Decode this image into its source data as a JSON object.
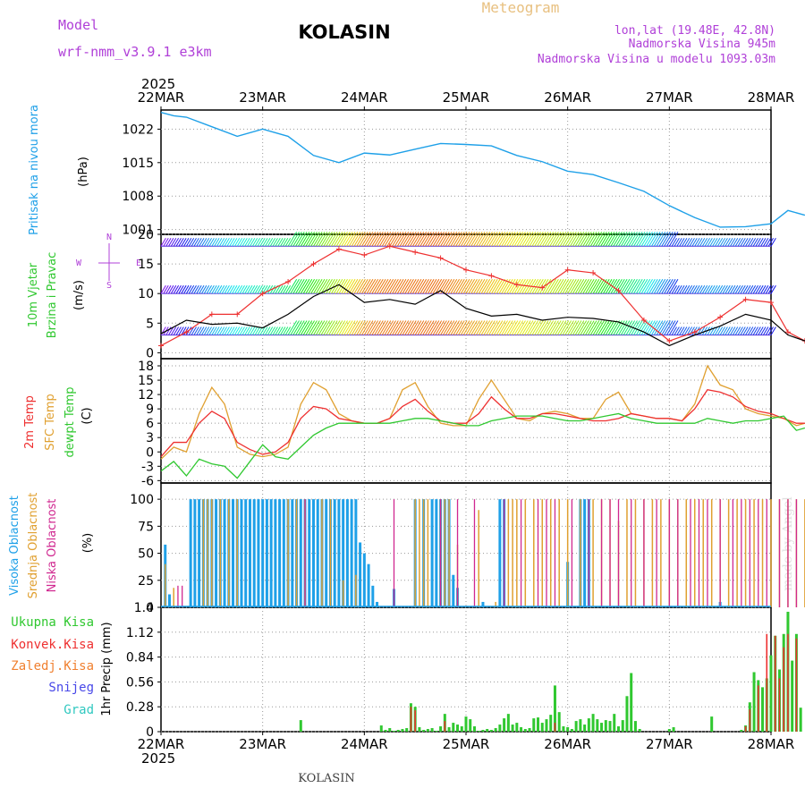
{
  "header": {
    "model_label": "Model",
    "model_name": "wrf-nmm_v3.9.1 e3km",
    "station": "KOLASIN",
    "meteogram": "Meteogram",
    "lonlat": "lon,lat (19.48E, 42.8N)",
    "elevation": "Nadmorska Visina 945m",
    "model_elevation": "Nadmorska Visina u modelu 1093.03m",
    "year_top": "2025",
    "year_bottom": "2025",
    "footer_station": "KOLASIN",
    "credit": "made by Angel"
  },
  "colors": {
    "purple": "#b040d8",
    "pressure": "#1ea0e8",
    "temp2m": "#ee3030",
    "sfc": "#e0a030",
    "dewpt": "#30c830",
    "high_cloud": "#1ea0e8",
    "mid_cloud": "#e0a030",
    "low_cloud": "#d02890",
    "total_precip": "#30c830",
    "conv_precip": "#ee3030"
  },
  "chart_data": [
    {
      "type": "line",
      "panel": "pressure",
      "ylabel": "Pritisak na nivou mora",
      "unit": "(hPa)",
      "x_ticks": [
        "22MAR",
        "23MAR",
        "24MAR",
        "25MAR",
        "26MAR",
        "27MAR",
        "28MAR"
      ],
      "y_ticks": [
        "1022",
        "1015",
        "1008",
        "1001"
      ],
      "ylim": [
        1000,
        1026
      ],
      "x_hours": [
        0,
        3,
        6,
        12,
        18,
        24,
        30,
        36,
        42,
        48,
        54,
        60,
        66,
        72,
        78,
        84,
        90,
        96,
        102,
        108,
        114,
        120,
        126,
        132,
        138,
        144,
        148,
        150,
        152
      ],
      "values": [
        1025.5,
        1024.8,
        1024.5,
        1022.5,
        1020.5,
        1022.0,
        1020.5,
        1016.5,
        1015.0,
        1017.0,
        1016.6,
        1017.8,
        1019.0,
        1018.8,
        1018.5,
        1016.5,
        1015.2,
        1013.2,
        1012.5,
        1010.8,
        1009.0,
        1006.0,
        1003.5,
        1001.5,
        1001.6,
        1002.2,
        1005.0,
        1004.5,
        1004.0
      ]
    },
    {
      "type": "line",
      "panel": "wind",
      "ylabel_1": "10m Vjetar",
      "ylabel_2": "Brzina i Pravac",
      "unit": "(m/s)",
      "compass": [
        "N",
        "W",
        "E",
        "S"
      ],
      "y_ticks": [
        "20",
        "15",
        "10",
        "5",
        "0"
      ],
      "ylim": [
        -1,
        20
      ],
      "x_hours": [
        0,
        6,
        12,
        18,
        24,
        30,
        36,
        42,
        48,
        54,
        60,
        66,
        72,
        78,
        84,
        90,
        96,
        102,
        108,
        114,
        120,
        126,
        132,
        138,
        144,
        148,
        152
      ],
      "speed": [
        3.2,
        5.5,
        4.8,
        5.0,
        4.2,
        6.5,
        9.5,
        11.5,
        8.5,
        9.0,
        8.2,
        10.5,
        7.5,
        6.2,
        6.5,
        5.5,
        6.0,
        5.8,
        5.2,
        3.5,
        1.2,
        3.0,
        4.5,
        6.5,
        5.5,
        3.0,
        2.0
      ],
      "gust": [
        1.2,
        3.5,
        6.5,
        6.5,
        10.0,
        12.0,
        15.0,
        17.5,
        16.5,
        18.0,
        17.0,
        16.0,
        14.0,
        13.0,
        11.5,
        11.0,
        14.0,
        13.5,
        10.5,
        5.5,
        2.0,
        3.5,
        6.0,
        9.0,
        8.5,
        3.5,
        2.0
      ],
      "barb_levels": [
        18,
        10,
        3
      ]
    },
    {
      "type": "line",
      "panel": "temperature",
      "ylabel_1": "2m Temp",
      "ylabel_2": "SFC Temp",
      "ylabel_3": "dewpt Temp",
      "unit": "(C)",
      "y_ticks": [
        "18",
        "15",
        "12",
        "9",
        "6",
        "3",
        "0",
        "-3",
        "-6"
      ],
      "ylim": [
        -6.5,
        19.5
      ],
      "x_hours": [
        0,
        3,
        6,
        9,
        12,
        15,
        18,
        21,
        24,
        27,
        30,
        33,
        36,
        39,
        42,
        45,
        48,
        51,
        54,
        57,
        60,
        63,
        66,
        69,
        72,
        75,
        78,
        81,
        84,
        87,
        90,
        93,
        96,
        99,
        102,
        105,
        108,
        111,
        114,
        117,
        120,
        123,
        126,
        129,
        132,
        135,
        138,
        141,
        144,
        147,
        150,
        152
      ],
      "temp_2m": [
        -1,
        2,
        2,
        6,
        8.5,
        7,
        2,
        0.5,
        -0.5,
        0,
        2,
        7,
        9.5,
        9,
        7,
        6.5,
        6,
        6,
        7,
        9.5,
        11,
        8.5,
        6.5,
        6,
        6,
        8,
        11.5,
        9,
        7,
        7,
        8,
        8,
        7.5,
        7,
        6.5,
        6.5,
        7,
        8,
        7.5,
        7,
        7,
        6.5,
        9,
        13,
        12.5,
        11.5,
        9.5,
        8.5,
        8,
        7,
        6,
        6
      ],
      "sfc_temp": [
        -1.5,
        1,
        0,
        8,
        13.5,
        10,
        1,
        -0.5,
        -1,
        -0.5,
        1,
        10,
        14.5,
        13,
        8,
        6.5,
        6,
        6,
        7,
        13,
        14.5,
        9.5,
        6,
        5.5,
        5.5,
        11,
        15,
        11,
        7,
        6.5,
        8,
        8.5,
        8,
        7,
        7,
        11,
        12.5,
        8,
        7.5,
        7,
        7,
        6.5,
        10,
        18,
        14,
        13,
        9,
        8,
        7.5,
        7,
        5.5,
        6
      ],
      "dewpoint": [
        -4,
        -2,
        -5,
        -1.5,
        -2.5,
        -3,
        -5.5,
        -2,
        1.5,
        -1,
        -1.5,
        1,
        3.5,
        5,
        6,
        6,
        6,
        6,
        6,
        6.5,
        7,
        7,
        6.5,
        6,
        5.5,
        5.5,
        6.5,
        7,
        7.5,
        7.5,
        7.5,
        7,
        6.5,
        6.5,
        7,
        7.5,
        8,
        7,
        6.5,
        6,
        6,
        6,
        6,
        7,
        6.5,
        6,
        6.5,
        6.5,
        7,
        7.5,
        4.5,
        5
      ]
    },
    {
      "type": "bar",
      "panel": "cloud",
      "ylabel_1": "Visoka Oblacnost",
      "ylabel_2": "Srednja Oblacnost",
      "ylabel_3": "Niska Oblacnost",
      "unit": "(%)",
      "y_ticks": [
        "100",
        "75",
        "50",
        "25",
        "0"
      ],
      "ylim": [
        0,
        100
      ],
      "series": [
        {
          "name": "Visoka Oblacnost",
          "x_hours": [
            1,
            2,
            7,
            8,
            9,
            10,
            11,
            12,
            13,
            14,
            15,
            16,
            17,
            18,
            19,
            20,
            21,
            22,
            23,
            24,
            25,
            26,
            27,
            28,
            29,
            30,
            31,
            32,
            33,
            34,
            35,
            36,
            37,
            38,
            39,
            40,
            41,
            42,
            43,
            44,
            45,
            46,
            47,
            48,
            49,
            50,
            51,
            55,
            60,
            62,
            64,
            65,
            66,
            67,
            68,
            69,
            70,
            76,
            80,
            81,
            96,
            99,
            100,
            101,
            132
          ],
          "values": [
            58,
            12,
            100,
            100,
            100,
            100,
            100,
            100,
            100,
            100,
            100,
            100,
            100,
            100,
            100,
            100,
            100,
            100,
            100,
            100,
            100,
            100,
            100,
            100,
            100,
            100,
            100,
            100,
            100,
            100,
            100,
            100,
            100,
            100,
            100,
            100,
            100,
            100,
            100,
            100,
            100,
            100,
            60,
            50,
            40,
            20,
            5,
            17,
            100,
            100,
            100,
            100,
            100,
            100,
            100,
            30,
            18,
            5,
            100,
            100,
            42,
            100,
            100,
            100,
            5
          ]
        },
        {
          "name": "Srednja Oblacnost",
          "x_hours": [
            1,
            3,
            10,
            11,
            12,
            14,
            16,
            18,
            30,
            32,
            34,
            38,
            40,
            43,
            46,
            60,
            61,
            62,
            63,
            66,
            67,
            68,
            70,
            75,
            79,
            82,
            83,
            84,
            86,
            88,
            90,
            92,
            94,
            96,
            99,
            102,
            104,
            106,
            108,
            110,
            112,
            114,
            116,
            118,
            120,
            122,
            124,
            126,
            128,
            130,
            132,
            134,
            136,
            138,
            140,
            142,
            144,
            146,
            148,
            150,
            152
          ],
          "values": [
            40,
            18,
            100,
            100,
            100,
            100,
            100,
            100,
            100,
            100,
            100,
            100,
            100,
            25,
            30,
            100,
            100,
            100,
            100,
            100,
            100,
            100,
            58,
            90,
            5,
            100,
            100,
            100,
            100,
            100,
            100,
            100,
            100,
            100,
            100,
            100,
            100,
            100,
            80,
            100,
            100,
            100,
            100,
            100,
            100,
            100,
            100,
            100,
            100,
            100,
            100,
            100,
            100,
            100,
            100,
            100,
            100,
            100,
            100,
            100,
            100
          ]
        },
        {
          "name": "Niska Oblacnost",
          "x_hours": [
            4,
            5,
            34,
            55,
            66,
            70,
            74,
            81,
            85,
            89,
            91,
            93,
            97,
            101,
            104,
            106,
            108,
            111,
            114,
            117,
            120,
            122,
            125,
            127,
            129,
            132,
            135,
            137,
            139,
            141,
            143,
            146,
            148,
            150
          ],
          "values": [
            20,
            20,
            100,
            100,
            100,
            100,
            100,
            100,
            100,
            100,
            100,
            100,
            100,
            100,
            100,
            100,
            100,
            100,
            100,
            100,
            100,
            100,
            100,
            100,
            100,
            100,
            100,
            100,
            100,
            100,
            100,
            100,
            100,
            100
          ]
        }
      ]
    },
    {
      "type": "bar",
      "panel": "precipitation",
      "ylabel": "1hr Precip (mm)",
      "legend": [
        "Ukupna Kisa",
        "Konvek.Kisa",
        "Zaledj.Kisa",
        "Snijeg",
        "Grad"
      ],
      "y_ticks": [
        "1.4",
        "1.12",
        "0.84",
        "0.56",
        "0.28",
        "0"
      ],
      "ylim": [
        0,
        1.4
      ],
      "x_ticks": [
        "22MAR",
        "23MAR",
        "24MAR",
        "25MAR",
        "26MAR",
        "27MAR",
        "28MAR"
      ],
      "series": [
        {
          "name": "Ukupna Kisa",
          "x_hours": [
            33,
            52,
            53,
            54,
            55,
            56,
            57,
            58,
            59,
            60,
            61,
            62,
            63,
            64,
            65,
            66,
            67,
            68,
            69,
            70,
            71,
            72,
            73,
            74,
            75,
            76,
            77,
            78,
            79,
            80,
            81,
            82,
            83,
            84,
            85,
            86,
            87,
            88,
            89,
            90,
            91,
            92,
            93,
            94,
            95,
            96,
            97,
            98,
            99,
            100,
            101,
            102,
            103,
            104,
            105,
            106,
            107,
            108,
            109,
            110,
            111,
            112,
            113,
            120,
            121,
            130,
            137,
            138,
            139,
            140,
            141,
            142,
            143,
            144,
            145,
            146,
            147,
            148,
            149,
            150,
            151
          ],
          "values": [
            0.13,
            0.07,
            0.02,
            0.04,
            0.01,
            0.02,
            0.03,
            0.04,
            0.32,
            0.28,
            0.05,
            0.02,
            0.03,
            0.04,
            0.01,
            0.06,
            0.2,
            0.05,
            0.1,
            0.08,
            0.06,
            0.17,
            0.14,
            0.06,
            0.01,
            0.02,
            0.03,
            0.02,
            0.04,
            0.08,
            0.15,
            0.2,
            0.08,
            0.1,
            0.05,
            0.03,
            0.04,
            0.15,
            0.16,
            0.1,
            0.14,
            0.19,
            0.52,
            0.22,
            0.06,
            0.05,
            0.03,
            0.12,
            0.14,
            0.08,
            0.15,
            0.2,
            0.14,
            0.1,
            0.13,
            0.12,
            0.2,
            0.06,
            0.13,
            0.4,
            0.66,
            0.12,
            0.03,
            0.03,
            0.05,
            0.17,
            0.02,
            0.07,
            0.33,
            0.67,
            0.58,
            0.5,
            0.6,
            0.86,
            1.08,
            0.7,
            1.1,
            1.35,
            0.8,
            1.1,
            0.27
          ]
        },
        {
          "name": "Konvek.Kisa",
          "x_hours": [
            59,
            60,
            67,
            93,
            138,
            139,
            141,
            143,
            145,
            146,
            147,
            148,
            150
          ],
          "values": [
            0.28,
            0.24,
            0.12,
            0.1,
            0.06,
            0.25,
            0.52,
            1.1,
            1.08,
            0.6,
            0.95,
            1.1,
            1.05
          ]
        }
      ]
    }
  ]
}
